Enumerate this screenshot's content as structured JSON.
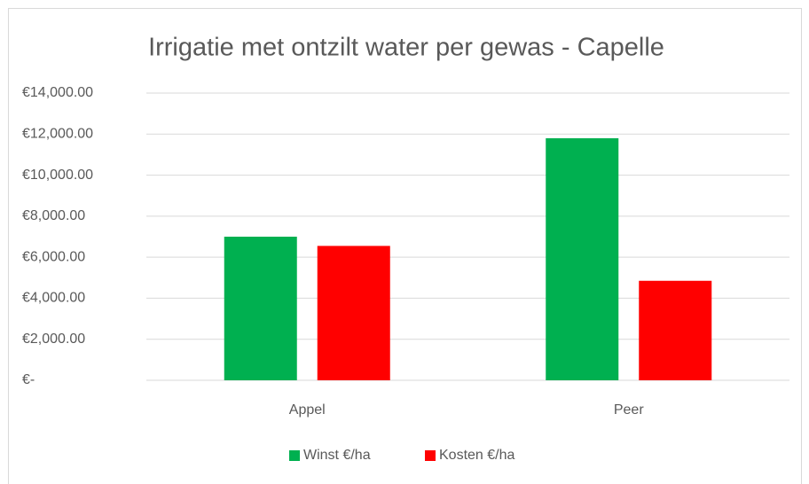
{
  "chart_data": {
    "type": "bar",
    "title": "Irrigatie met ontzilt water per gewas - Capelle",
    "categories": [
      "Appel",
      "Peer"
    ],
    "series": [
      {
        "name": "Winst €/ha",
        "color": "#00b050",
        "values": [
          7000,
          11800
        ]
      },
      {
        "name": "Kosten €/ha",
        "color": "#ff0000",
        "values": [
          6550,
          4850
        ]
      }
    ],
    "ylim": [
      0,
      14000
    ],
    "yticks": [
      {
        "value": 0,
        "label": "€-"
      },
      {
        "value": 2000,
        "label": "€2,000.00"
      },
      {
        "value": 4000,
        "label": "€4,000.00"
      },
      {
        "value": 6000,
        "label": "€6,000.00"
      },
      {
        "value": 8000,
        "label": "€8,000.00"
      },
      {
        "value": 10000,
        "label": "€10,000.00"
      },
      {
        "value": 12000,
        "label": "€12,000.00"
      },
      {
        "value": 14000,
        "label": "€14,000.00"
      }
    ],
    "grid": true,
    "legend": "bottom"
  }
}
